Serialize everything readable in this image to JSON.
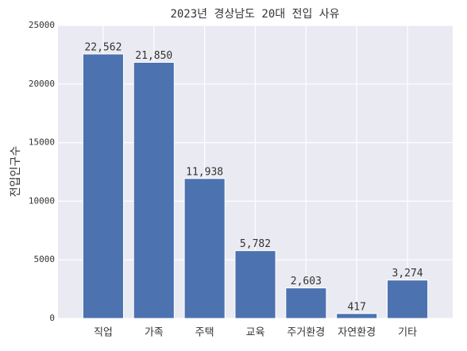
{
  "chart_data": {
    "type": "bar",
    "title": "2023년 경상남도 20대 전입 사유",
    "ylabel": "전입인구수",
    "categories": [
      "직업",
      "가족",
      "주택",
      "교육",
      "주거환경",
      "자연환경",
      "기타"
    ],
    "values": [
      22562,
      21850,
      11938,
      5782,
      2603,
      417,
      3274
    ],
    "value_labels": [
      "22,562",
      "21,850",
      "11,938",
      "5,782",
      "2,603",
      "417",
      "3,274"
    ],
    "color": "#4c72b0",
    "ylim": [
      0,
      25000
    ],
    "yticks": [
      0,
      5000,
      10000,
      15000,
      20000,
      25000
    ],
    "grid": true
  }
}
